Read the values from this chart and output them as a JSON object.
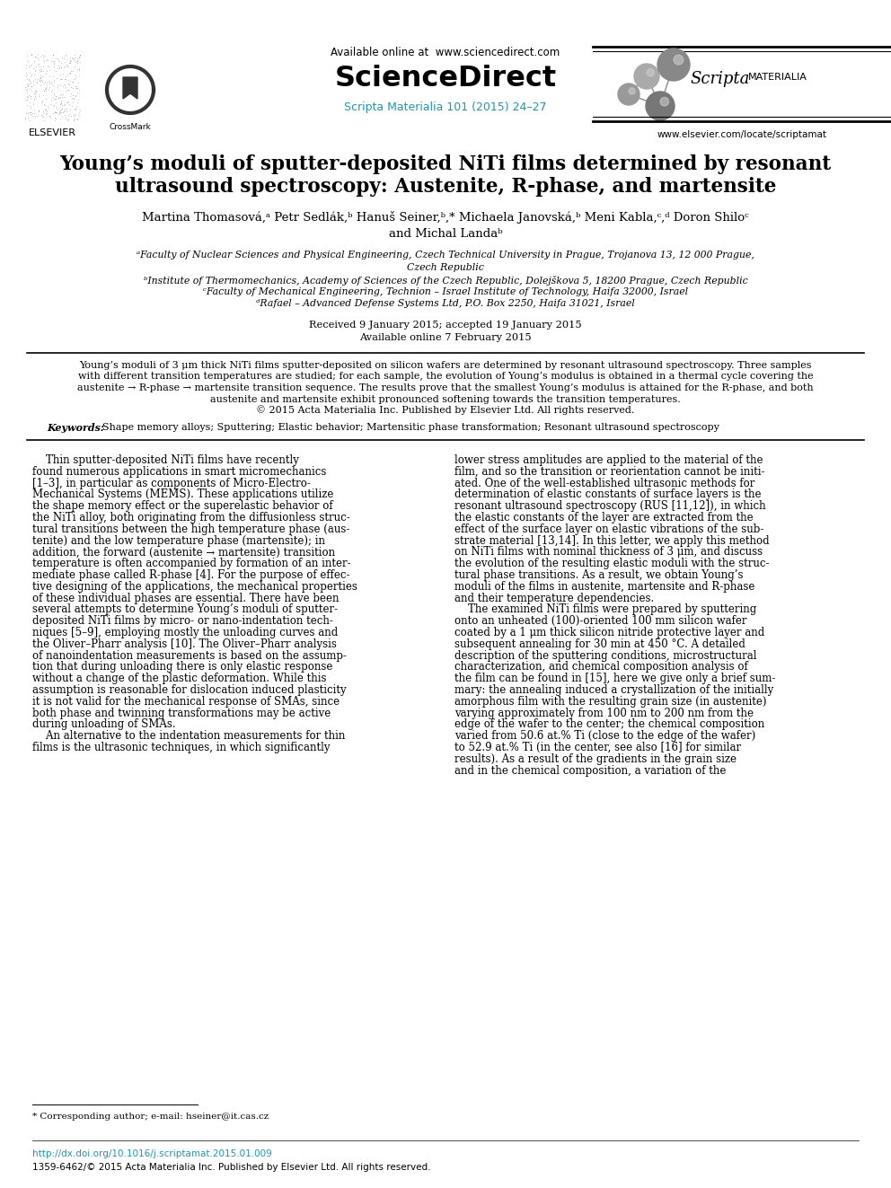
{
  "bg_color": "#ffffff",
  "title_line1": "Young’s moduli of sputter-deposited NiTi films determined by resonant",
  "title_line2": "ultrasound spectroscopy: Austenite, R-phase, and martensite",
  "authors_line1": "Martina Thomasová,ᵃ Petr Sedlák,ᵇ Hanuš Seiner,ᵇ,* Michaela Janovská,ᵇ Meni Kabla,ᶜ,ᵈ Doron Shiloᶜ",
  "authors_line2": "and Michal Landaᵇ",
  "affil_a": "ᵃFaculty of Nuclear Sciences and Physical Engineering, Czech Technical University in Prague, Trojanova 13, 12 000 Prague,",
  "affil_a2": "Czech Republic",
  "affil_b": "ᵇInstitute of Thermomechanics, Academy of Sciences of the Czech Republic, Dolejškova 5, 18200 Prague, Czech Republic",
  "affil_c": "ᶜFaculty of Mechanical Engineering, Technion – Israel Institute of Technology, Haifa 32000, Israel",
  "affil_d": "ᵈRafael – Advanced Defense Systems Ltd, P.O. Box 2250, Haifa 31021, Israel",
  "received": "Received 9 January 2015; accepted 19 January 2015",
  "available_online": "Available online 7 February 2015",
  "abstract_line1": "Young’s moduli of 3 μm thick NiTi films sputter-deposited on silicon wafers are determined by resonant ultrasound spectroscopy. Three samples",
  "abstract_line2": "with different transition temperatures are studied; for each sample, the evolution of Young’s modulus is obtained in a thermal cycle covering the",
  "abstract_line3": "austenite → R-phase → martensite transition sequence. The results prove that the smallest Young’s modulus is attained for the R-phase, and both",
  "abstract_line4": "austenite and martensite exhibit pronounced softening towards the transition temperatures.",
  "abstract_line5": "© 2015 Acta Materialia Inc. Published by Elsevier Ltd. All rights reserved.",
  "keywords_label": "Keywords:",
  "keywords_text": "Shape memory alloys; Sputtering; Elastic behavior; Martensitic phase transformation; Resonant ultrasound spectroscopy",
  "header_available": "Available online at  www.sciencedirect.com",
  "header_sd": "ScienceDirect",
  "header_journal": "Scripta Materialia 101 (2015) 24–27",
  "header_website": "www.elsevier.com/locate/scriptamat",
  "footnote": "* Corresponding author; e-mail: hseiner@it.cas.cz",
  "footer_doi": "http://dx.doi.org/10.1016/j.scriptamat.2015.01.009",
  "footer_issn": "1359-6462/© 2015 Acta Materialia Inc. Published by Elsevier Ltd. All rights reserved.",
  "link_color": "#2196a8",
  "black": "#000000",
  "body_col1": [
    "    Thin sputter-deposited NiTi films have recently",
    "found numerous applications in smart micromechanics",
    "[1–3], in particular as components of Micro-Electro-",
    "Mechanical Systems (MEMS). These applications utilize",
    "the shape memory effect or the superelastic behavior of",
    "the NiTi alloy, both originating from the diffusionless struc-",
    "tural transitions between the high temperature phase (aus-",
    "tenite) and the low temperature phase (martensite); in",
    "addition, the forward (austenite → martensite) transition",
    "temperature is often accompanied by formation of an inter-",
    "mediate phase called R-phase [4]. For the purpose of effec-",
    "tive designing of the applications, the mechanical properties",
    "of these individual phases are essential. There have been",
    "several attempts to determine Young’s moduli of sputter-",
    "deposited NiTi films by micro- or nano-indentation tech-",
    "niques [5–9], employing mostly the unloading curves and",
    "the Oliver–Pharr analysis [10]. The Oliver–Pharr analysis",
    "of nanoindentation measurements is based on the assump-",
    "tion that during unloading there is only elastic response",
    "without a change of the plastic deformation. While this",
    "assumption is reasonable for dislocation induced plasticity",
    "it is not valid for the mechanical response of SMAs, since",
    "both phase and twinning transformations may be active",
    "during unloading of SMAs.",
    "    An alternative to the indentation measurements for thin",
    "films is the ultrasonic techniques, in which significantly"
  ],
  "body_col2": [
    "lower stress amplitudes are applied to the material of the",
    "film, and so the transition or reorientation cannot be initi-",
    "ated. One of the well-established ultrasonic methods for",
    "determination of elastic constants of surface layers is the",
    "resonant ultrasound spectroscopy (RUS [11,12]), in which",
    "the elastic constants of the layer are extracted from the",
    "effect of the surface layer on elastic vibrations of the sub-",
    "strate material [13,14]. In this letter, we apply this method",
    "on NiTi films with nominal thickness of 3 μm, and discuss",
    "the evolution of the resulting elastic moduli with the struc-",
    "tural phase transitions. As a result, we obtain Young’s",
    "moduli of the films in austenite, martensite and R-phase",
    "and their temperature dependencies.",
    "    The examined NiTi films were prepared by sputtering",
    "onto an unheated (100)-oriented 100 mm silicon wafer",
    "coated by a 1 μm thick silicon nitride protective layer and",
    "subsequent annealing for 30 min at 450 °C. A detailed",
    "description of the sputtering conditions, microstructural",
    "characterization, and chemical composition analysis of",
    "the film can be found in [15], here we give only a brief sum-",
    "mary: the annealing induced a crystallization of the initially",
    "amorphous film with the resulting grain size (in austenite)",
    "varying approximately from 100 nm to 200 nm from the",
    "edge of the wafer to the center; the chemical composition",
    "varied from 50.6 at.% Ti (close to the edge of the wafer)",
    "to 52.9 at.% Ti (in the center, see also [16] for similar",
    "results). As a result of the gradients in the grain size",
    "and in the chemical composition, a variation of the"
  ]
}
